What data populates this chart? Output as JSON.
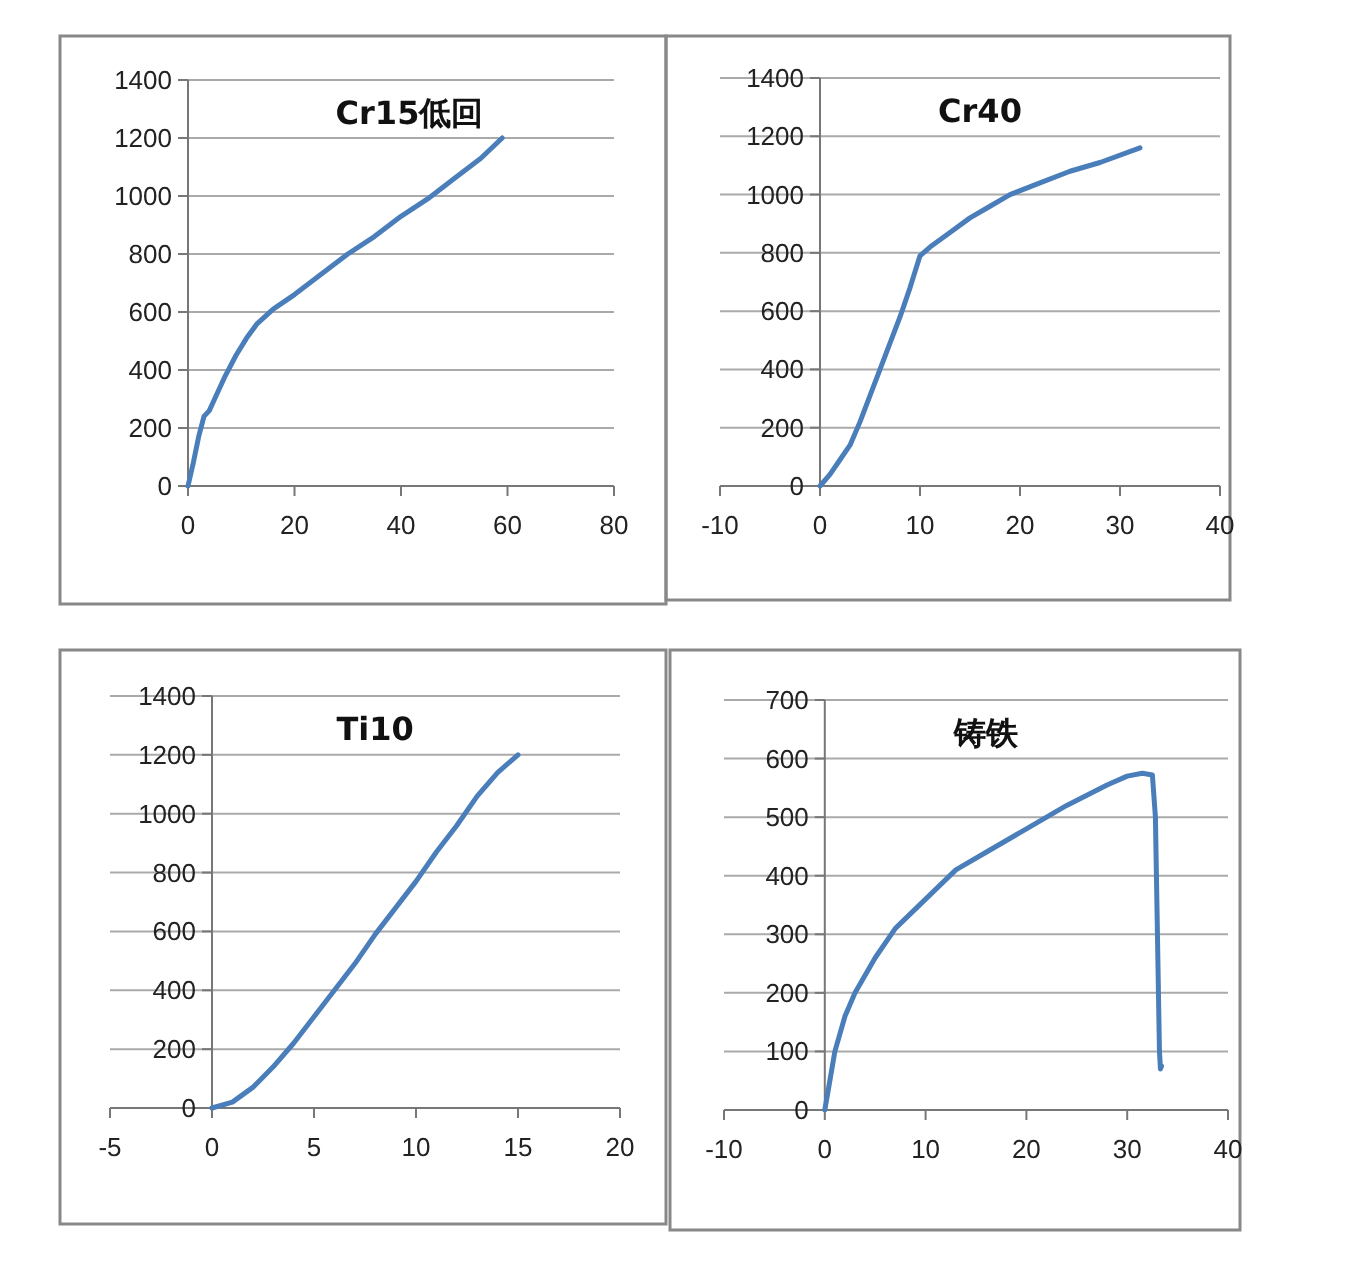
{
  "chart_data": [
    {
      "type": "line",
      "title": "Cr15低回",
      "color": "#4a7ebb",
      "grid": "y",
      "xlim": [
        0,
        80
      ],
      "ylim": [
        0,
        1400
      ],
      "xticks": [
        0,
        20,
        40,
        60,
        80
      ],
      "yticks": [
        0,
        200,
        400,
        600,
        800,
        1000,
        1200,
        1400
      ],
      "x": [
        0,
        1,
        2,
        3,
        4,
        5,
        7,
        9,
        11,
        13,
        16,
        20,
        25,
        30,
        35,
        40,
        45,
        50,
        55,
        59
      ],
      "values": [
        0,
        80,
        170,
        240,
        260,
        300,
        380,
        450,
        510,
        560,
        610,
        660,
        730,
        800,
        860,
        930,
        990,
        1060,
        1130,
        1200
      ]
    },
    {
      "type": "line",
      "title": "Cr40",
      "color": "#4a7ebb",
      "grid": "y",
      "xlim": [
        -10,
        40
      ],
      "ylim": [
        0,
        1400
      ],
      "xticks": [
        -10,
        0,
        10,
        20,
        30,
        40
      ],
      "yticks": [
        0,
        200,
        400,
        600,
        800,
        1000,
        1200,
        1400
      ],
      "x": [
        0,
        1,
        2,
        3,
        4,
        5,
        6,
        7,
        8,
        9,
        10,
        11,
        13,
        15,
        17,
        19,
        22,
        25,
        28,
        32
      ],
      "values": [
        0,
        40,
        90,
        140,
        220,
        310,
        400,
        490,
        580,
        680,
        790,
        820,
        870,
        920,
        960,
        1000,
        1040,
        1080,
        1110,
        1160
      ]
    },
    {
      "type": "line",
      "title": "Ti10",
      "color": "#4a7ebb",
      "grid": "y",
      "xlim": [
        -5,
        20
      ],
      "ylim": [
        0,
        1400
      ],
      "xticks": [
        -5,
        0,
        5,
        10,
        15,
        20
      ],
      "yticks": [
        0,
        200,
        400,
        600,
        800,
        1000,
        1200,
        1400
      ],
      "x": [
        0,
        1,
        2,
        3,
        4,
        5,
        6,
        7,
        8,
        9,
        10,
        11,
        12,
        13,
        14,
        15
      ],
      "values": [
        0,
        20,
        70,
        140,
        220,
        310,
        400,
        490,
        590,
        680,
        770,
        870,
        960,
        1060,
        1140,
        1200
      ]
    },
    {
      "type": "line",
      "title": "铸铁",
      "color": "#4a7ebb",
      "grid": "y",
      "xlim": [
        -10,
        40
      ],
      "ylim": [
        0,
        700
      ],
      "xticks": [
        -10,
        0,
        10,
        20,
        30,
        40
      ],
      "yticks": [
        0,
        100,
        200,
        300,
        400,
        500,
        600,
        700
      ],
      "x": [
        0,
        0.5,
        1,
        2,
        3,
        5,
        7,
        10,
        13,
        16,
        20,
        24,
        28,
        30,
        31.5,
        32.5,
        32.8,
        33,
        33.2,
        33.3,
        33.4
      ],
      "values": [
        0,
        50,
        100,
        160,
        200,
        260,
        310,
        360,
        410,
        440,
        480,
        520,
        555,
        570,
        575,
        572,
        500,
        300,
        100,
        70,
        75
      ]
    }
  ]
}
